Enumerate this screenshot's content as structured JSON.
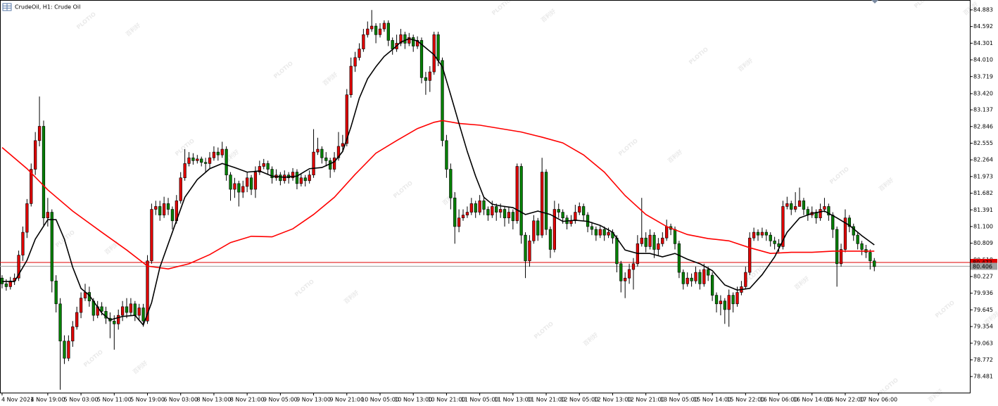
{
  "chart_data": {
    "type": "candlestick",
    "title": "CrudeOil, H1: Crude Oil",
    "watermark": [
      "PLOTIO",
      "百利好"
    ],
    "up_color": "#e00000",
    "down_color": "#008000",
    "xlim": [
      -0.5,
      233
    ],
    "ylim": [
      78.2,
      85.055
    ],
    "yticks": [
      84.883,
      84.592,
      84.301,
      {
        "value": 84.01,
        "label": "84.010"
      },
      83.719,
      {
        "value": 83.42,
        "label": "83.420"
      },
      83.137,
      82.846,
      82.555,
      82.264,
      81.973,
      81.682,
      81.391,
      {
        "value": 81.1,
        "label": "81.100"
      },
      80.809,
      80.518,
      80.227,
      79.936,
      79.645,
      79.354,
      79.063,
      78.772,
      78.481
    ],
    "xticks": [
      {
        "value": 0,
        "label": "4 Nov 2021"
      },
      {
        "value": 11,
        "label": "4 Nov 19:00"
      },
      {
        "value": 19,
        "label": "5 Nov 03:00"
      },
      {
        "value": 27,
        "label": "5 Nov 11:00"
      },
      {
        "value": 35,
        "label": "5 Nov 19:00"
      },
      {
        "value": 43,
        "label": "6 Nov 03:00"
      },
      {
        "value": 51,
        "label": "8 Nov 13:00"
      },
      {
        "value": 59,
        "label": "8 Nov 21:00"
      },
      {
        "value": 67,
        "label": "9 Nov 05:00"
      },
      {
        "value": 75,
        "label": "9 Nov 13:00"
      },
      {
        "value": 83,
        "label": "9 Nov 21:00"
      },
      {
        "value": 91,
        "label": "10 Nov 05:00"
      },
      {
        "value": 99,
        "label": "10 Nov 13:00"
      },
      {
        "value": 107,
        "label": "10 Nov 21:00"
      },
      {
        "value": 115,
        "label": "11 Nov 05:00"
      },
      {
        "value": 123,
        "label": "11 Nov 13:00"
      },
      {
        "value": 131,
        "label": "11 Nov 21:00"
      },
      {
        "value": 139,
        "label": "12 Nov 05:00"
      },
      {
        "value": 147,
        "label": "12 Nov 13:00"
      },
      {
        "value": 155,
        "label": "12 Nov 21:00"
      },
      {
        "value": 163,
        "label": "13 Nov 05:00"
      },
      {
        "value": 171,
        "label": "15 Nov 14:00"
      },
      {
        "value": 179,
        "label": "15 Nov 22:00"
      },
      {
        "value": 187,
        "label": "16 Nov 06:00"
      },
      {
        "value": 195,
        "label": "16 Nov 14:00"
      },
      {
        "value": 203,
        "label": "16 Nov 22:00"
      },
      {
        "value": 211,
        "label": "17 Nov 06:00"
      }
    ],
    "open": [
      80.2,
      80.1,
      80.05,
      80.15,
      80.2,
      80.6,
      81.0,
      81.5,
      82.1,
      82.6,
      82.85,
      81.25,
      81.35,
      80.15,
      79.75,
      79.1,
      78.8,
      79.1,
      79.35,
      79.6,
      79.85,
      79.95,
      79.8,
      79.55,
      79.7,
      79.62,
      79.5,
      79.45,
      79.4,
      79.55,
      79.7,
      79.6,
      79.75,
      79.55,
      79.68,
      79.45,
      80.5,
      81.4,
      81.45,
      81.3,
      81.5,
      81.4,
      81.2,
      81.55,
      81.95,
      82.2,
      82.3,
      82.25,
      82.28,
      82.22,
      82.2,
      82.3,
      82.4,
      82.35,
      82.45,
      82.0,
      81.75,
      81.85,
      81.7,
      81.8,
      81.95,
      81.75,
      82.05,
      82.15,
      82.2,
      82.1,
      81.95,
      82.0,
      81.9,
      82.0,
      81.95,
      82.05,
      81.85,
      81.95,
      81.9,
      82.0,
      82.4,
      82.45,
      82.3,
      82.25,
      82.1,
      82.3,
      82.5,
      82.55,
      83.4,
      83.9,
      84.05,
      84.2,
      84.45,
      84.55,
      84.6,
      84.45,
      84.55,
      84.65,
      84.35,
      84.2,
      84.3,
      84.45,
      84.3,
      84.4,
      84.25,
      84.35,
      83.7,
      83.65,
      83.8,
      84.45,
      84.0,
      82.6,
      82.1,
      81.6,
      81.1,
      81.25,
      81.3,
      81.35,
      81.5,
      81.35,
      81.55,
      81.4,
      81.3,
      81.45,
      81.35,
      81.4,
      81.25,
      81.35,
      81.2,
      82.15,
      80.95,
      80.5,
      80.85,
      81.2,
      80.95,
      82.05,
      81.05,
      80.7,
      81.4,
      81.35,
      81.25,
      81.15,
      81.2,
      81.35,
      81.45,
      81.3,
      81.1,
      81.05,
      80.95,
      81.05,
      80.95,
      81.0,
      80.9,
      80.45,
      80.15,
      80.2,
      80.35,
      80.45,
      80.8,
      80.9,
      80.75,
      80.95,
      80.7,
      80.8,
      80.9,
      81.1,
      81.05,
      80.8,
      80.3,
      80.1,
      80.2,
      80.15,
      80.3,
      80.1,
      80.35,
      80.25,
      79.9,
      79.75,
      79.8,
      79.65,
      79.9,
      79.75,
      79.95,
      80.05,
      80.3,
      80.9,
      81.0,
      80.95,
      81.0,
      80.95,
      80.85,
      80.8,
      80.75,
      81.45,
      81.5,
      81.4,
      81.45,
      81.55,
      81.4,
      81.3,
      81.35,
      81.25,
      81.4,
      81.45,
      81.3,
      81.05,
      80.45,
      80.7,
      81.25,
      81.1,
      80.95,
      80.8,
      80.7,
      80.65,
      80.5
    ],
    "high": [
      80.25,
      80.18,
      80.22,
      80.28,
      80.68,
      81.1,
      81.58,
      82.2,
      82.75,
      83.37,
      82.95,
      81.6,
      81.4,
      80.25,
      79.85,
      79.2,
      79.2,
      79.45,
      79.7,
      79.95,
      80.1,
      80.05,
      79.85,
      79.8,
      79.78,
      79.7,
      79.6,
      79.55,
      79.65,
      79.8,
      79.85,
      79.85,
      79.8,
      79.75,
      79.75,
      80.6,
      81.5,
      81.55,
      81.55,
      81.62,
      81.6,
      81.45,
      81.65,
      82.05,
      82.45,
      82.4,
      82.38,
      82.35,
      82.32,
      82.3,
      82.4,
      82.5,
      82.48,
      82.58,
      82.5,
      82.05,
      81.95,
      81.9,
      81.9,
      82.05,
      82.0,
      82.15,
      82.25,
      82.28,
      82.25,
      82.15,
      82.1,
      82.05,
      82.08,
      82.05,
      82.12,
      82.1,
      82.02,
      82.0,
      82.08,
      82.8,
      82.65,
      82.5,
      82.4,
      82.3,
      82.4,
      82.75,
      82.7,
      83.5,
      84.05,
      84.15,
      84.3,
      84.55,
      84.68,
      84.88,
      84.65,
      84.65,
      84.7,
      84.7,
      84.4,
      84.45,
      84.55,
      84.5,
      84.48,
      84.45,
      84.42,
      84.4,
      83.8,
      83.9,
      84.5,
      84.5,
      84.05,
      82.7,
      82.2,
      81.7,
      81.4,
      81.4,
      81.45,
      81.6,
      81.55,
      81.65,
      81.6,
      81.45,
      81.55,
      81.5,
      81.5,
      81.45,
      81.45,
      81.4,
      82.2,
      82.2,
      81.0,
      80.95,
      81.3,
      81.25,
      82.3,
      82.1,
      81.1,
      81.55,
      81.5,
      81.4,
      81.3,
      81.3,
      81.48,
      81.52,
      81.5,
      81.35,
      81.18,
      81.1,
      81.12,
      81.1,
      81.08,
      81.05,
      80.95,
      80.5,
      80.3,
      80.45,
      80.55,
      80.95,
      81.6,
      81.0,
      81.05,
      81.0,
      80.9,
      81.0,
      81.22,
      81.15,
      81.1,
      80.85,
      80.35,
      80.3,
      80.28,
      80.4,
      80.35,
      80.45,
      80.4,
      80.3,
      79.95,
      79.9,
      79.85,
      80.0,
      79.95,
      80.05,
      80.15,
      80.4,
      81.0,
      81.08,
      81.05,
      81.08,
      81.05,
      81.0,
      80.92,
      80.88,
      81.55,
      81.62,
      81.55,
      81.7,
      81.78,
      81.6,
      81.45,
      81.45,
      81.4,
      81.5,
      81.6,
      81.5,
      81.35,
      81.1,
      80.8,
      81.4,
      81.3,
      81.15,
      81.0,
      80.85,
      80.78,
      80.7,
      80.55
    ],
    "low": [
      80.02,
      79.98,
      80.0,
      80.08,
      80.15,
      80.5,
      80.9,
      81.45,
      82.0,
      82.5,
      81.1,
      81.1,
      79.95,
      79.6,
      78.25,
      78.7,
      78.75,
      79.0,
      79.3,
      79.5,
      79.8,
      79.7,
      79.45,
      79.5,
      79.55,
      79.4,
      79.15,
      78.95,
      79.3,
      79.45,
      79.5,
      79.55,
      79.45,
      79.45,
      79.35,
      79.4,
      80.45,
      81.3,
      81.2,
      81.25,
      81.3,
      81.05,
      81.15,
      81.5,
      81.9,
      82.15,
      82.18,
      82.2,
      82.15,
      82.05,
      82.12,
      82.25,
      82.25,
      82.3,
      81.9,
      81.55,
      81.6,
      81.45,
      81.6,
      81.7,
      81.65,
      81.6,
      82.0,
      82.1,
      82.0,
      81.85,
      81.9,
      81.82,
      81.85,
      81.85,
      81.9,
      81.75,
      81.8,
      81.8,
      81.85,
      81.95,
      82.35,
      82.2,
      82.15,
      81.95,
      82.05,
      82.25,
      82.4,
      82.5,
      83.35,
      83.8,
      84.0,
      84.15,
      84.4,
      84.5,
      84.3,
      84.4,
      84.5,
      84.25,
      84.1,
      84.15,
      84.25,
      84.2,
      84.25,
      84.15,
      84.2,
      83.6,
      83.4,
      83.45,
      83.75,
      83.9,
      82.5,
      81.95,
      81.4,
      80.8,
      81.0,
      81.2,
      81.25,
      81.3,
      81.25,
      81.3,
      81.3,
      81.2,
      81.25,
      81.2,
      81.25,
      81.1,
      81.15,
      81.05,
      81.15,
      80.8,
      80.2,
      80.4,
      80.8,
      80.85,
      80.9,
      80.95,
      80.55,
      80.65,
      81.25,
      81.15,
      81.05,
      81.1,
      81.15,
      81.3,
      81.2,
      81.0,
      80.95,
      80.85,
      80.9,
      80.85,
      80.9,
      80.8,
      80.3,
      79.95,
      79.85,
      80.1,
      80.0,
      80.4,
      80.75,
      80.65,
      80.7,
      80.55,
      80.6,
      80.75,
      80.85,
      80.95,
      80.7,
      80.2,
      80.0,
      80.05,
      80.05,
      80.1,
      80.0,
      80.05,
      80.15,
      79.8,
      79.6,
      79.55,
      79.4,
      79.35,
      79.6,
      79.7,
      79.9,
      80.0,
      80.25,
      80.85,
      80.85,
      80.9,
      80.85,
      80.75,
      80.7,
      80.65,
      80.7,
      81.4,
      81.3,
      81.35,
      81.45,
      81.3,
      81.2,
      81.25,
      81.15,
      81.2,
      81.35,
      81.2,
      80.9,
      80.05,
      80.4,
      80.65,
      81.0,
      80.85,
      80.7,
      80.6,
      80.55,
      80.35,
      80.32
    ],
    "close": [
      80.1,
      80.05,
      80.15,
      80.2,
      80.6,
      81.0,
      81.5,
      82.1,
      82.6,
      82.85,
      81.25,
      81.35,
      80.15,
      79.75,
      79.1,
      78.8,
      79.1,
      79.35,
      79.6,
      79.85,
      79.95,
      79.8,
      79.55,
      79.7,
      79.62,
      79.5,
      79.45,
      79.4,
      79.55,
      79.7,
      79.6,
      79.75,
      79.55,
      79.68,
      79.45,
      80.5,
      81.4,
      81.45,
      81.3,
      81.5,
      81.4,
      81.2,
      81.55,
      81.95,
      82.2,
      82.3,
      82.25,
      82.28,
      82.22,
      82.2,
      82.3,
      82.4,
      82.35,
      82.45,
      82.0,
      81.75,
      81.85,
      81.7,
      81.8,
      81.95,
      81.75,
      82.05,
      82.15,
      82.2,
      82.1,
      81.95,
      82.0,
      81.9,
      82.0,
      81.95,
      82.05,
      81.85,
      81.95,
      81.9,
      82.0,
      82.4,
      82.45,
      82.3,
      82.25,
      82.1,
      82.3,
      82.5,
      82.55,
      83.4,
      83.9,
      84.05,
      84.2,
      84.45,
      84.55,
      84.6,
      84.45,
      84.55,
      84.65,
      84.35,
      84.2,
      84.3,
      84.45,
      84.3,
      84.4,
      84.25,
      84.35,
      83.7,
      83.65,
      83.8,
      84.45,
      84.0,
      82.6,
      82.1,
      81.6,
      81.1,
      81.25,
      81.3,
      81.35,
      81.5,
      81.35,
      81.55,
      81.4,
      81.3,
      81.45,
      81.35,
      81.4,
      81.25,
      81.35,
      81.2,
      82.15,
      80.95,
      80.5,
      80.85,
      81.2,
      80.95,
      82.05,
      81.05,
      80.7,
      81.4,
      81.35,
      81.25,
      81.15,
      81.2,
      81.35,
      81.45,
      81.3,
      81.1,
      81.05,
      80.95,
      81.05,
      80.95,
      81.0,
      80.9,
      80.45,
      80.15,
      80.2,
      80.35,
      80.45,
      80.8,
      80.9,
      80.75,
      80.95,
      80.7,
      80.8,
      80.9,
      81.1,
      81.05,
      80.8,
      80.3,
      80.1,
      80.2,
      80.15,
      80.3,
      80.1,
      80.35,
      80.25,
      79.9,
      79.75,
      79.8,
      79.65,
      79.9,
      79.75,
      79.95,
      80.05,
      80.3,
      80.9,
      81.0,
      80.95,
      81.0,
      80.95,
      80.85,
      80.8,
      80.75,
      81.45,
      81.5,
      81.4,
      81.45,
      81.55,
      81.4,
      81.3,
      81.35,
      81.25,
      81.4,
      81.45,
      81.3,
      81.05,
      80.45,
      80.7,
      81.25,
      81.1,
      80.95,
      80.8,
      80.7,
      80.65,
      80.5,
      80.4
    ],
    "overlays": [
      {
        "color": "#ff0000",
        "x": [
          0,
          6,
          11,
          17,
          24,
          30,
          35,
          40,
          45,
          50,
          55,
          60,
          65,
          70,
          75,
          80,
          85,
          90,
          95,
          100,
          104,
          106,
          110,
          115,
          120,
          125,
          130,
          135,
          140,
          145,
          150,
          155,
          160,
          165,
          170,
          175,
          180,
          185,
          190,
          195,
          200,
          205,
          210
        ],
        "values": [
          82.48,
          82.11,
          81.74,
          81.37,
          81.0,
          80.69,
          80.41,
          80.36,
          80.45,
          80.61,
          80.82,
          80.93,
          80.92,
          81.06,
          81.31,
          81.61,
          82.01,
          82.38,
          82.6,
          82.81,
          82.92,
          82.95,
          82.9,
          82.87,
          82.81,
          82.75,
          82.66,
          82.56,
          82.35,
          82.05,
          81.64,
          81.31,
          81.1,
          80.96,
          80.89,
          80.85,
          80.73,
          80.63,
          80.65,
          80.65,
          80.67,
          80.67,
          80.67
        ]
      },
      {
        "color": "#000000",
        "x": [
          0,
          3,
          6,
          8,
          11,
          13,
          15,
          17,
          19,
          21,
          24,
          26,
          29,
          32,
          34,
          36,
          38,
          41,
          44,
          47,
          50,
          53,
          56,
          59,
          62,
          65,
          68,
          71,
          74,
          77,
          80,
          82,
          84,
          86,
          88,
          90,
          92,
          94,
          96,
          98,
          100,
          102,
          104,
          106,
          108,
          110,
          112,
          114,
          116,
          118,
          120,
          123,
          126,
          129,
          132,
          135,
          138,
          141,
          144,
          147,
          150,
          153,
          156,
          159,
          162,
          165,
          168,
          171,
          174,
          177,
          180,
          183,
          186,
          189,
          192,
          195,
          198,
          201,
          204,
          207,
          210
        ],
        "values": [
          80.14,
          80.14,
          80.51,
          80.88,
          81.22,
          81.22,
          80.88,
          80.39,
          80.02,
          79.9,
          79.59,
          79.47,
          79.53,
          79.55,
          79.38,
          79.77,
          80.39,
          81.0,
          81.61,
          81.92,
          82.11,
          82.2,
          82.13,
          82.05,
          82.07,
          81.98,
          81.96,
          81.98,
          82.11,
          82.13,
          82.23,
          82.41,
          82.84,
          83.34,
          83.68,
          83.89,
          84.07,
          84.19,
          84.32,
          84.38,
          84.34,
          84.22,
          84.1,
          83.89,
          83.4,
          82.9,
          82.41,
          81.98,
          81.61,
          81.49,
          81.46,
          81.43,
          81.31,
          81.37,
          81.31,
          81.19,
          81.21,
          81.19,
          81.12,
          81.0,
          80.69,
          80.63,
          80.63,
          80.57,
          80.63,
          80.53,
          80.45,
          80.33,
          80.08,
          79.99,
          80.02,
          80.26,
          80.57,
          81.0,
          81.25,
          81.33,
          81.37,
          81.25,
          81.12,
          80.94,
          80.78
        ]
      }
    ],
    "price_lines": [
      {
        "value": 80.473,
        "color": "#e00000"
      },
      {
        "value": 80.406,
        "color": "#a0a0a0"
      }
    ]
  }
}
